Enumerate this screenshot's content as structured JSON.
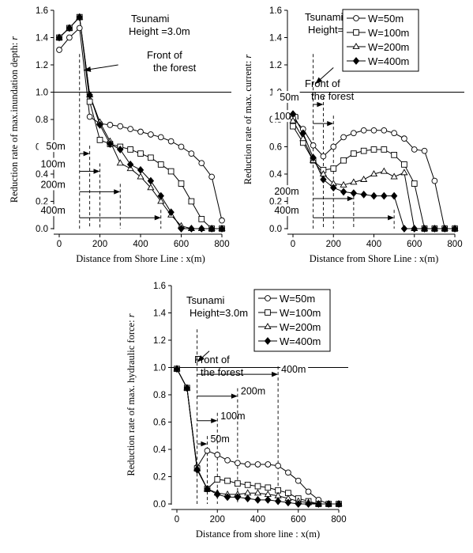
{
  "chart_data": [
    {
      "type": "line",
      "ylabel_text": "Reduction rate of max.inundation depth: ",
      "ylabel_var": "r",
      "xlabel": "Distance from Shore Line : x(m)",
      "xlim": [
        0,
        800
      ],
      "ylim": [
        0,
        1.6
      ],
      "xticks": [
        0,
        200,
        400,
        600,
        800
      ],
      "yticks": [
        0.0,
        0.2,
        0.4,
        0.6,
        0.8,
        1.0,
        1.2,
        1.4,
        1.6
      ],
      "reference_line": 1.0,
      "annotation_title": [
        "Tsunami",
        "Height =3.0m"
      ],
      "front_label": [
        "Front of",
        "the forest"
      ],
      "series": [
        {
          "marker": "circle",
          "x": [
            0,
            50,
            100,
            150,
            200,
            250,
            300,
            350,
            400,
            450,
            500,
            550,
            600,
            650,
            700,
            750,
            800
          ],
          "y": [
            1.31,
            1.4,
            1.47,
            0.82,
            0.77,
            0.76,
            0.75,
            0.73,
            0.71,
            0.69,
            0.67,
            0.64,
            0.6,
            0.55,
            0.48,
            0.38,
            0.06
          ]
        },
        {
          "marker": "square",
          "x": [
            0,
            50,
            100,
            150,
            200,
            250,
            300,
            350,
            400,
            450,
            500,
            550,
            600,
            650,
            700,
            750,
            800
          ],
          "y": [
            1.4,
            1.47,
            1.55,
            0.93,
            0.65,
            0.62,
            0.6,
            0.58,
            0.55,
            0.52,
            0.47,
            0.42,
            0.33,
            0.2,
            0.07,
            0.0,
            0.0
          ]
        },
        {
          "marker": "triangle",
          "x": [
            0,
            50,
            100,
            150,
            200,
            250,
            300,
            350,
            400,
            450,
            500,
            550,
            600,
            650,
            700,
            750,
            800
          ],
          "y": [
            1.4,
            1.47,
            1.55,
            0.98,
            0.78,
            0.64,
            0.48,
            0.44,
            0.38,
            0.3,
            0.2,
            0.1,
            0.02,
            0.0,
            0.0,
            0.0,
            0.0
          ]
        },
        {
          "marker": "diamond",
          "x": [
            0,
            50,
            100,
            150,
            200,
            250,
            300,
            350,
            400,
            450,
            500,
            550,
            600,
            650,
            700,
            750,
            800
          ],
          "y": [
            1.4,
            1.47,
            1.55,
            0.98,
            0.76,
            0.62,
            0.58,
            0.47,
            0.43,
            0.35,
            0.24,
            0.12,
            0.0,
            0.0,
            0.0,
            0.0,
            0.0
          ]
        }
      ],
      "width_markers": [
        {
          "label": "50m",
          "start": 100,
          "end": 150,
          "y": 0.55
        },
        {
          "label": "100m",
          "start": 100,
          "end": 200,
          "y": 0.42
        },
        {
          "label": "200m",
          "start": 100,
          "end": 300,
          "y": 0.27
        },
        {
          "label": "400m",
          "start": 100,
          "end": 500,
          "y": 0.08
        }
      ],
      "front_arrow": {
        "from": [
          290,
          1.2
        ],
        "to": [
          120,
          1.16
        ]
      }
    },
    {
      "type": "line",
      "ylabel_text": "Reduction rate of max. current: ",
      "ylabel_var": "r",
      "xlabel": "Distance from Shore Line : x(m)",
      "xlim": [
        0,
        800
      ],
      "ylim": [
        0,
        1.6
      ],
      "xticks": [
        0,
        200,
        400,
        600,
        800
      ],
      "yticks": [
        0.0,
        0.2,
        0.4,
        0.6,
        0.8,
        1.0,
        1.2,
        1.4,
        1.6
      ],
      "reference_line": 1.0,
      "annotation_title": [
        "Tsunami",
        "Height=3.0m"
      ],
      "front_label": [
        "Front of",
        "the forest"
      ],
      "legend": [
        "W=50m",
        "W=100m",
        "W=200m",
        "W=400m"
      ],
      "series": [
        {
          "marker": "circle",
          "x": [
            0,
            50,
            100,
            150,
            200,
            250,
            300,
            350,
            400,
            450,
            500,
            550,
            600,
            650,
            700,
            750,
            800
          ],
          "y": [
            0.81,
            0.73,
            0.61,
            0.53,
            0.6,
            0.67,
            0.7,
            0.72,
            0.72,
            0.72,
            0.7,
            0.66,
            0.58,
            0.57,
            0.35,
            0.0,
            0.0
          ]
        },
        {
          "marker": "square",
          "x": [
            0,
            50,
            100,
            150,
            200,
            250,
            300,
            350,
            400,
            450,
            500,
            550,
            600,
            650,
            700,
            750,
            800
          ],
          "y": [
            0.75,
            0.63,
            0.5,
            0.43,
            0.44,
            0.5,
            0.55,
            0.57,
            0.58,
            0.58,
            0.54,
            0.47,
            0.33,
            0.0,
            0.0,
            0.0,
            0.0
          ]
        },
        {
          "marker": "triangle",
          "x": [
            0,
            50,
            100,
            150,
            200,
            250,
            300,
            350,
            400,
            450,
            500,
            550,
            600,
            650,
            700,
            750,
            800
          ],
          "y": [
            0.79,
            0.66,
            0.5,
            0.4,
            0.33,
            0.32,
            0.34,
            0.36,
            0.4,
            0.42,
            0.38,
            0.41,
            0.0,
            0.0,
            0.0,
            0.0,
            0.0
          ]
        },
        {
          "marker": "diamond",
          "x": [
            0,
            50,
            100,
            150,
            200,
            250,
            300,
            350,
            400,
            450,
            500,
            550,
            600,
            650,
            700,
            750,
            800
          ],
          "y": [
            0.84,
            0.7,
            0.52,
            0.36,
            0.3,
            0.27,
            0.26,
            0.25,
            0.24,
            0.24,
            0.24,
            0.0,
            0.0,
            0.0,
            0.0,
            0.0,
            0.0
          ]
        }
      ],
      "width_markers": [
        {
          "label": "50m",
          "start": 100,
          "end": 150,
          "y": 0.91
        },
        {
          "label": "100m",
          "start": 100,
          "end": 200,
          "y": 0.77
        },
        {
          "label": "200m",
          "start": 100,
          "end": 300,
          "y": 0.22
        },
        {
          "label": "400m",
          "start": 100,
          "end": 500,
          "y": 0.08
        }
      ],
      "front_arrow": {
        "from": [
          200,
          1.18
        ],
        "to": [
          110,
          1.06
        ]
      }
    },
    {
      "type": "line",
      "ylabel_text": "Reduction rate of max. hydraulic force: ",
      "ylabel_var": "r",
      "xlabel": "Distance from shore line : x(m)",
      "xlim": [
        0,
        800
      ],
      "ylim": [
        0,
        1.6
      ],
      "xticks": [
        0,
        200,
        400,
        600,
        800
      ],
      "yticks": [
        0.0,
        0.2,
        0.4,
        0.6,
        0.8,
        1.0,
        1.2,
        1.4,
        1.6
      ],
      "reference_line": 1.0,
      "annotation_title": [
        "Tsunami",
        "Height=3.0m"
      ],
      "front_label": [
        "Front of",
        "the forest"
      ],
      "legend": [
        "W=50m",
        "W=100m",
        "W=200m",
        "W=400m"
      ],
      "series": [
        {
          "marker": "circle",
          "x": [
            0,
            50,
            100,
            150,
            200,
            250,
            300,
            350,
            400,
            450,
            500,
            550,
            600,
            650,
            700,
            750,
            800
          ],
          "y": [
            0.99,
            0.85,
            0.27,
            0.39,
            0.36,
            0.32,
            0.3,
            0.29,
            0.29,
            0.29,
            0.28,
            0.23,
            0.17,
            0.09,
            0.03,
            0.0,
            0.0
          ]
        },
        {
          "marker": "square",
          "x": [
            0,
            50,
            100,
            150,
            200,
            250,
            300,
            350,
            400,
            450,
            500,
            550,
            600,
            650,
            700,
            750,
            800
          ],
          "y": [
            0.99,
            0.85,
            0.26,
            0.11,
            0.18,
            0.17,
            0.15,
            0.14,
            0.13,
            0.12,
            0.1,
            0.08,
            0.04,
            0.02,
            0.0,
            0.0,
            0.0
          ]
        },
        {
          "marker": "triangle",
          "x": [
            0,
            50,
            100,
            150,
            200,
            250,
            300,
            350,
            400,
            450,
            500,
            550,
            600,
            650,
            700,
            750,
            800
          ],
          "y": [
            0.99,
            0.85,
            0.26,
            0.11,
            0.08,
            0.07,
            0.07,
            0.08,
            0.08,
            0.07,
            0.06,
            0.04,
            0.02,
            0.01,
            0.0,
            0.0,
            0.0
          ]
        },
        {
          "marker": "diamond",
          "x": [
            0,
            50,
            100,
            150,
            200,
            250,
            300,
            350,
            400,
            450,
            500,
            550,
            600,
            650,
            700,
            750,
            800
          ],
          "y": [
            0.99,
            0.85,
            0.25,
            0.11,
            0.07,
            0.05,
            0.05,
            0.04,
            0.03,
            0.03,
            0.02,
            0.01,
            0.0,
            0.0,
            0.0,
            0.0,
            0.0
          ]
        }
      ],
      "width_markers": [
        {
          "label": "50m",
          "start": 100,
          "end": 150,
          "y": 0.44
        },
        {
          "label": "100m",
          "start": 100,
          "end": 200,
          "y": 0.61
        },
        {
          "label": "200m",
          "start": 100,
          "end": 300,
          "y": 0.79
        },
        {
          "label": "400m",
          "start": 100,
          "end": 500,
          "y": 0.95
        }
      ],
      "front_arrow": {
        "from": [
          160,
          1.12
        ],
        "to": [
          100,
          1.04
        ]
      }
    }
  ]
}
